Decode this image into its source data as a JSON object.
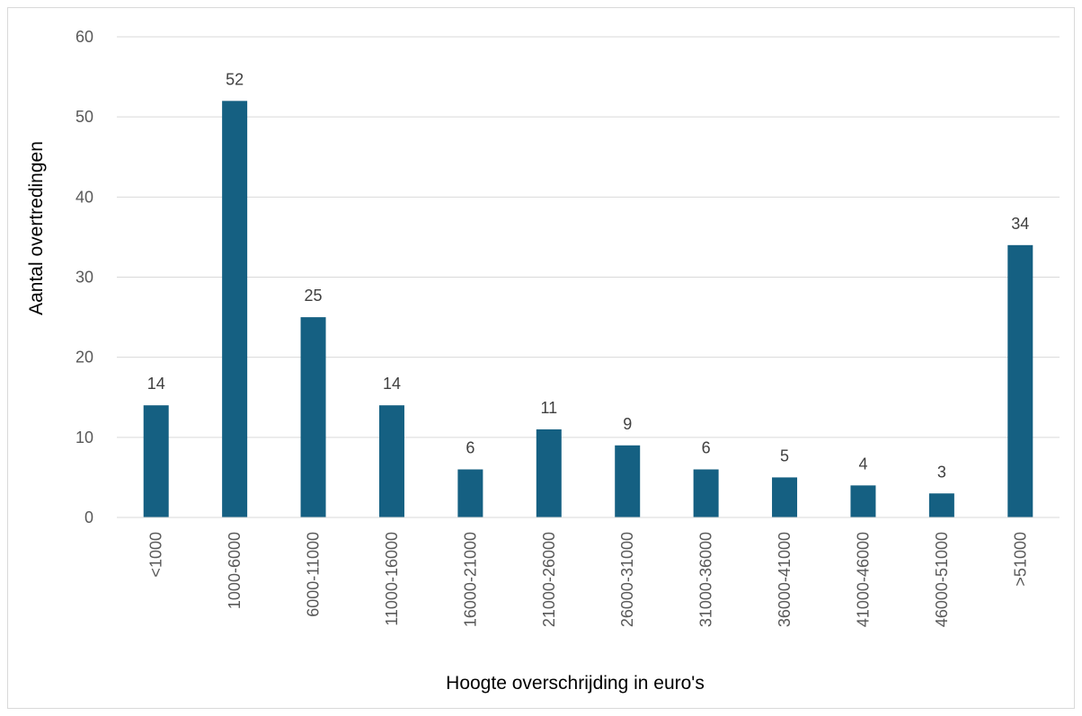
{
  "chart_data": {
    "type": "bar",
    "categories": [
      "<1000",
      "1000-6000",
      "6000-11000",
      "11000-16000",
      "16000-21000",
      "21000-26000",
      "26000-31000",
      "31000-36000",
      "36000-41000",
      "41000-46000",
      "46000-51000",
      ">51000"
    ],
    "values": [
      14,
      52,
      25,
      14,
      6,
      11,
      9,
      6,
      5,
      4,
      3,
      34
    ],
    "title": "",
    "xlabel": "Hoogte overschrijding in euro's",
    "ylabel": "Aantal overtredingen",
    "ylim": [
      0,
      60
    ],
    "yticks": [
      0,
      10,
      20,
      30,
      40,
      50,
      60
    ],
    "grid": true,
    "legend": "none",
    "data_labels": true,
    "bar_color": "#156082",
    "gridline_color": "#d9d9d9"
  }
}
